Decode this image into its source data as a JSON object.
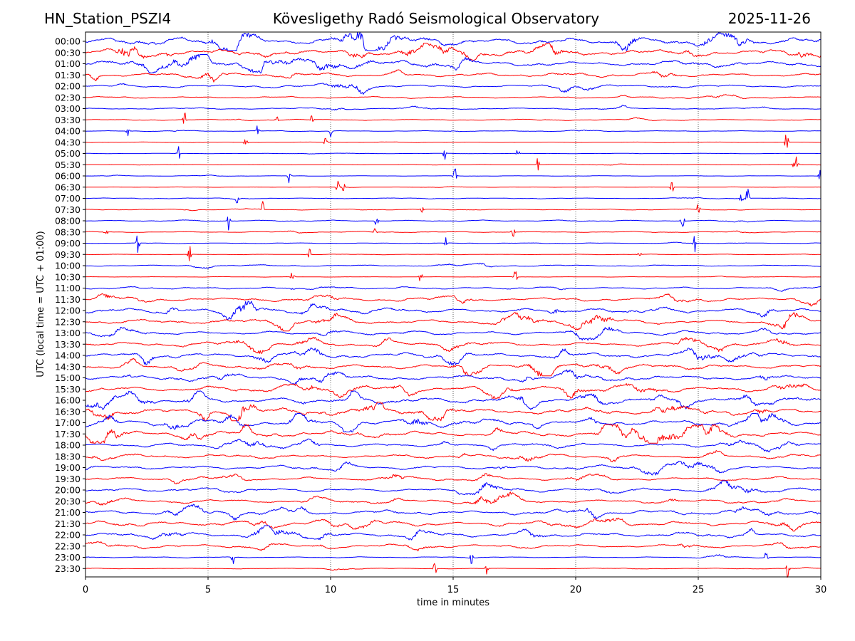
{
  "header": {
    "station": "HN_Station_PSZI4",
    "observatory": "Kövesligethy Radó Seismological Observatory",
    "date": "2025-11-26"
  },
  "colors": {
    "trace_a": "#0000ff",
    "trace_b": "#ff0000",
    "axes": "#000000"
  },
  "chart_data": {
    "type": "line",
    "xlabel": "time in minutes",
    "ylabel": "UTC (local time = UTC + 01:00)",
    "xlim": [
      0,
      30
    ],
    "x_ticks": [
      0,
      5,
      10,
      15,
      20,
      25,
      30
    ],
    "x_grid": "dotted vertical lines at every x tick",
    "y_ticks": [
      "00:00",
      "00:30",
      "01:00",
      "01:30",
      "02:00",
      "02:30",
      "03:00",
      "03:30",
      "04:00",
      "04:30",
      "05:00",
      "05:30",
      "06:00",
      "06:30",
      "07:00",
      "07:30",
      "08:00",
      "08:30",
      "09:00",
      "09:30",
      "10:00",
      "10:30",
      "11:00",
      "11:30",
      "12:00",
      "12:30",
      "13:00",
      "13:30",
      "14:00",
      "14:30",
      "15:00",
      "15:30",
      "16:00",
      "16:30",
      "17:00",
      "17:30",
      "18:00",
      "18:30",
      "19:00",
      "19:30",
      "20:00",
      "20:30",
      "21:00",
      "21:30",
      "22:00",
      "22:30",
      "23:00",
      "23:30"
    ],
    "trace_color_cycle": [
      "#0000ff",
      "#ff0000"
    ],
    "relative_amplitude": [
      1.0,
      0.9,
      0.8,
      0.55,
      0.45,
      0.25,
      0.22,
      0.18,
      0.12,
      0.08,
      0.06,
      0.07,
      0.06,
      0.05,
      0.12,
      0.15,
      0.18,
      0.15,
      0.1,
      0.08,
      0.2,
      0.06,
      0.3,
      0.55,
      0.7,
      0.7,
      0.55,
      0.65,
      0.8,
      0.75,
      0.8,
      0.85,
      0.95,
      0.95,
      0.95,
      0.85,
      0.6,
      0.55,
      0.6,
      0.55,
      0.6,
      0.6,
      0.7,
      0.65,
      0.65,
      0.55,
      0.15,
      0.12
    ]
  }
}
